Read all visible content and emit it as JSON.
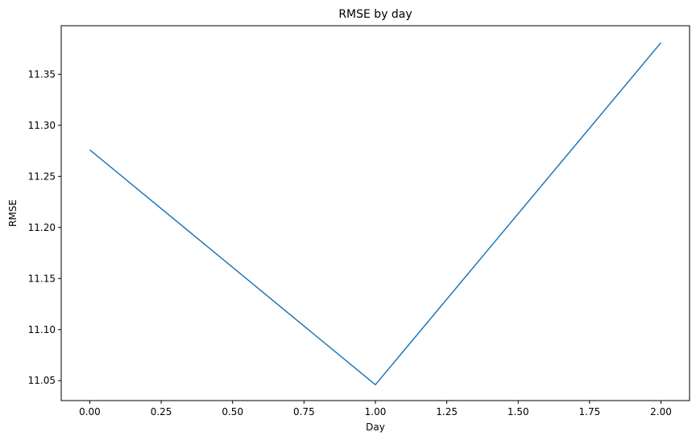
{
  "chart_data": {
    "type": "line",
    "title": "RMSE by day",
    "xlabel": "Day",
    "ylabel": "RMSE",
    "xlim": [
      -0.1,
      2.1
    ],
    "ylim": [
      11.0305,
      11.3975
    ],
    "xticks": [
      0.0,
      0.25,
      0.5,
      0.75,
      1.0,
      1.25,
      1.5,
      1.75,
      2.0
    ],
    "xtick_labels": [
      "0.00",
      "0.25",
      "0.50",
      "0.75",
      "1.00",
      "1.25",
      "1.50",
      "1.75",
      "2.00"
    ],
    "yticks": [
      11.05,
      11.1,
      11.15,
      11.2,
      11.25,
      11.3,
      11.35
    ],
    "ytick_labels": [
      "11.05",
      "11.10",
      "11.15",
      "11.20",
      "11.25",
      "11.30",
      "11.35"
    ],
    "grid": false,
    "series": [
      {
        "x": [
          0,
          1,
          2
        ],
        "values": [
          11.276,
          11.046,
          11.381
        ],
        "color": "#1f77b4"
      }
    ]
  }
}
